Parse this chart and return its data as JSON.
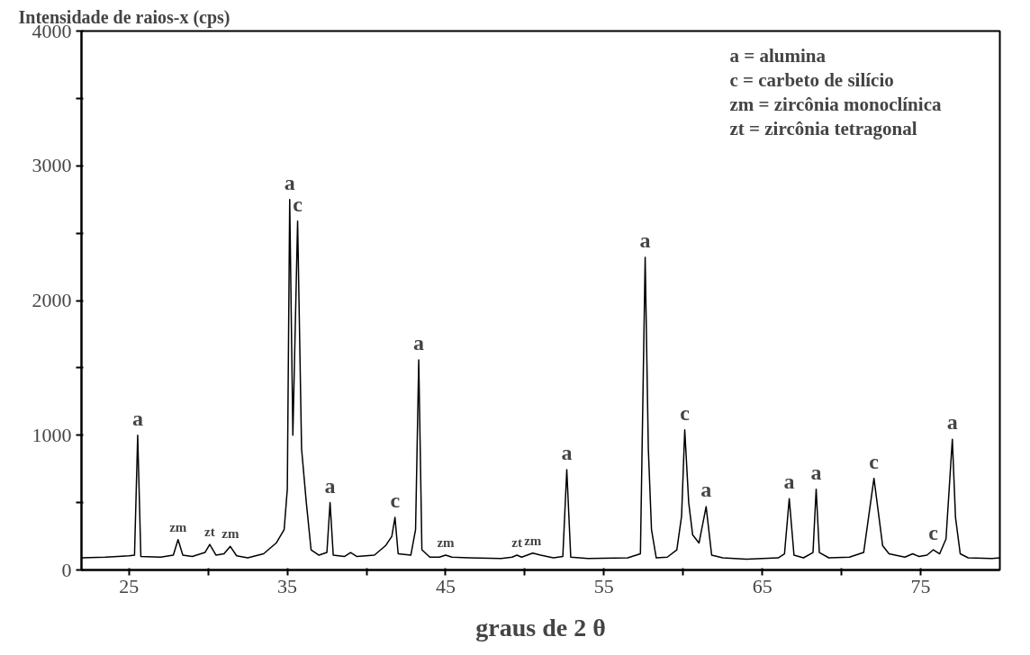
{
  "chart_data": {
    "type": "line",
    "ylabel": "Intensidade de raios-x (cps)",
    "xlabel": "graus de 2 θ",
    "xlim": [
      22,
      80
    ],
    "ylim": [
      0,
      4000
    ],
    "xticks": [
      25,
      {
        "value": 30,
        "label": null
      },
      35,
      {
        "value": 40,
        "label": null
      },
      45,
      {
        "value": 50,
        "label": null
      },
      55,
      {
        "value": 60,
        "label": null
      },
      65,
      {
        "value": 70,
        "label": null
      },
      75
    ],
    "yticks": [
      0,
      {
        "value": 500,
        "label": null
      },
      1000,
      {
        "value": 1500,
        "label": null
      },
      2000,
      {
        "value": 2500,
        "label": null
      },
      3000,
      {
        "value": 3500,
        "label": null
      },
      4000
    ],
    "grid": false,
    "series": [
      {
        "color": "#000000",
        "x": [
          22.0,
          23.5,
          24.3,
          25.0,
          25.35,
          25.55,
          25.75,
          27.0,
          27.8,
          28.1,
          28.4,
          29.0,
          29.8,
          30.1,
          30.5,
          31.0,
          31.4,
          31.8,
          32.5,
          33.5,
          34.3,
          34.8,
          35.0,
          35.15,
          35.35,
          35.65,
          35.9,
          36.2,
          36.5,
          37.0,
          37.5,
          37.7,
          37.9,
          38.6,
          39.0,
          39.4,
          40.5,
          41.2,
          41.6,
          41.8,
          42.0,
          42.8,
          43.1,
          43.3,
          43.5,
          44.0,
          44.6,
          45.0,
          45.4,
          46.5,
          48.5,
          49.2,
          49.5,
          49.8,
          50.5,
          51.0,
          51.8,
          52.4,
          52.65,
          52.9,
          54.0,
          56.5,
          57.3,
          57.6,
          57.8,
          58.0,
          58.3,
          59.0,
          59.6,
          59.9,
          60.1,
          60.35,
          60.6,
          61.0,
          61.45,
          61.8,
          62.5,
          64.0,
          66.0,
          66.4,
          66.7,
          67.0,
          67.6,
          68.2,
          68.4,
          68.6,
          69.2,
          70.5,
          71.4,
          72.05,
          72.6,
          73.0,
          74.0,
          74.5,
          74.9,
          75.4,
          75.8,
          76.2,
          76.6,
          77.0,
          77.2,
          77.5,
          78.0,
          79.5,
          80.0
        ],
        "values": [
          90,
          95,
          100,
          105,
          110,
          1000,
          100,
          95,
          110,
          225,
          110,
          100,
          130,
          190,
          110,
          120,
          175,
          105,
          90,
          120,
          200,
          300,
          600,
          2750,
          1000,
          2590,
          900,
          500,
          150,
          110,
          130,
          500,
          110,
          100,
          130,
          100,
          110,
          180,
          250,
          390,
          120,
          110,
          300,
          1560,
          150,
          95,
          95,
          110,
          95,
          90,
          85,
          95,
          110,
          95,
          125,
          110,
          90,
          100,
          745,
          95,
          85,
          90,
          120,
          2320,
          900,
          300,
          90,
          95,
          150,
          400,
          1040,
          500,
          260,
          200,
          470,
          110,
          90,
          80,
          90,
          120,
          530,
          110,
          90,
          130,
          600,
          130,
          90,
          95,
          130,
          680,
          180,
          120,
          95,
          120,
          100,
          110,
          150,
          120,
          230,
          970,
          390,
          120,
          90,
          85,
          90
        ]
      }
    ],
    "annotations": [
      {
        "text": "a",
        "x": 25.55,
        "y": 1000
      },
      {
        "text": "zm",
        "x": 28.1,
        "y": 225
      },
      {
        "text": "zt",
        "x": 30.1,
        "y": 190
      },
      {
        "text": "zm",
        "x": 31.4,
        "y": 175
      },
      {
        "text": "a",
        "x": 35.15,
        "y": 2750
      },
      {
        "text": "c",
        "x": 35.65,
        "y": 2590
      },
      {
        "text": "a",
        "x": 37.7,
        "y": 500
      },
      {
        "text": "c",
        "x": 41.8,
        "y": 390
      },
      {
        "text": "a",
        "x": 43.3,
        "y": 1560
      },
      {
        "text": "zm",
        "x": 45.0,
        "y": 110
      },
      {
        "text": "zt",
        "x": 49.5,
        "y": 110
      },
      {
        "text": "zm",
        "x": 50.5,
        "y": 125
      },
      {
        "text": "a",
        "x": 52.65,
        "y": 745
      },
      {
        "text": "a",
        "x": 57.6,
        "y": 2320
      },
      {
        "text": "c",
        "x": 60.1,
        "y": 1040
      },
      {
        "text": "a",
        "x": 61.45,
        "y": 470
      },
      {
        "text": "a",
        "x": 66.7,
        "y": 530
      },
      {
        "text": "a",
        "x": 68.4,
        "y": 600
      },
      {
        "text": "c",
        "x": 72.05,
        "y": 680
      },
      {
        "text": "c",
        "x": 75.8,
        "y": 150
      },
      {
        "text": "a",
        "x": 77.0,
        "y": 970
      },
      "a = alumina",
      "c = carbeto de silício",
      "zm = zircônia monoclínica",
      "zt = zircônia tetragonal"
    ]
  }
}
